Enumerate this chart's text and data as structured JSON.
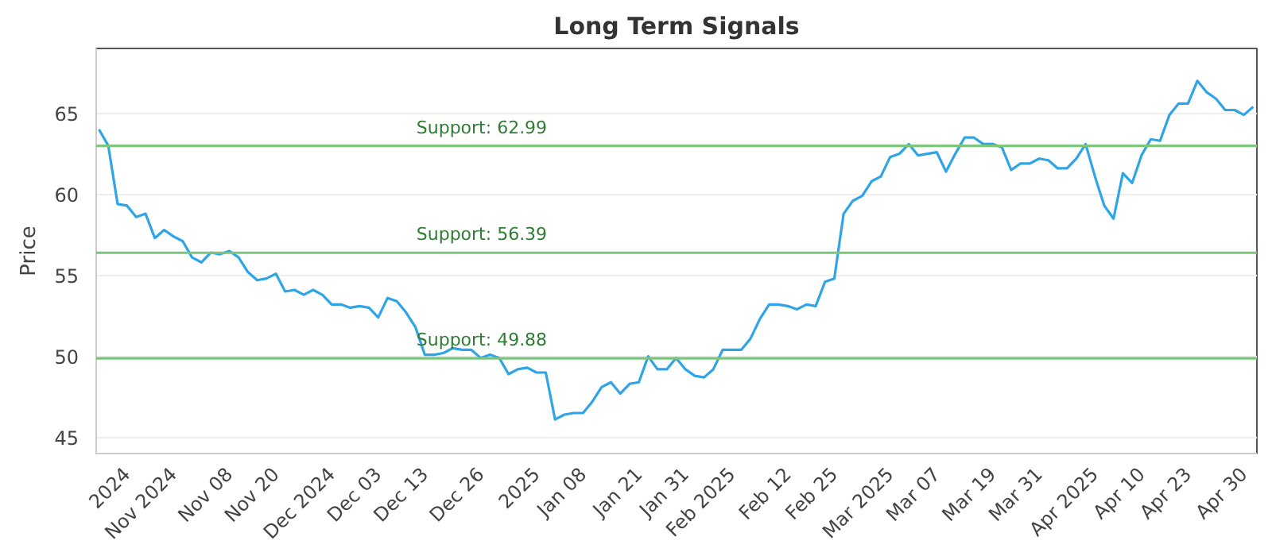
{
  "chart_data": {
    "type": "line",
    "title": "Long Term Signals",
    "ylabel": "Price",
    "categories": [
      null,
      null,
      null,
      "2024",
      null,
      null,
      null,
      null,
      "Nov 2024",
      null,
      null,
      null,
      null,
      null,
      "Nov 08",
      null,
      null,
      null,
      null,
      "Nov 20",
      null,
      null,
      null,
      null,
      null,
      "Dec 2024",
      null,
      null,
      null,
      null,
      "Dec 03",
      null,
      null,
      null,
      null,
      "Dec 13",
      null,
      null,
      null,
      null,
      null,
      "Dec 26",
      null,
      null,
      null,
      null,
      null,
      "2025",
      null,
      null,
      null,
      null,
      "Jan 08",
      null,
      null,
      null,
      null,
      null,
      "Jan 21",
      null,
      null,
      null,
      null,
      "Jan 31",
      null,
      null,
      null,
      null,
      "Feb 2025",
      null,
      null,
      null,
      null,
      null,
      "Feb 12",
      null,
      null,
      null,
      null,
      "Feb 25",
      null,
      null,
      null,
      null,
      null,
      "Mar 2025",
      null,
      null,
      null,
      null,
      "Mar 07",
      null,
      null,
      null,
      null,
      null,
      "Mar 19",
      null,
      null,
      null,
      null,
      "Mar 31",
      null,
      null,
      null,
      null,
      null,
      "Apr 2025",
      null,
      null,
      null,
      null,
      "Apr 10",
      null,
      null,
      null,
      null,
      "Apr 23",
      null,
      null,
      null,
      null,
      null,
      "Apr 30",
      null
    ],
    "series": [
      {
        "color": "#2fa4e7",
        "values": [
          64.0,
          63.0,
          59.4,
          59.3,
          58.6,
          58.8,
          57.3,
          57.8,
          57.4,
          57.1,
          56.1,
          55.8,
          56.4,
          56.3,
          56.5,
          56.1,
          55.2,
          54.7,
          54.8,
          55.1,
          54.0,
          54.1,
          53.8,
          54.1,
          53.8,
          53.2,
          53.2,
          53.0,
          53.1,
          53.0,
          52.4,
          53.6,
          53.4,
          52.7,
          51.8,
          50.1,
          50.1,
          50.2,
          50.5,
          50.4,
          50.4,
          49.9,
          50.1,
          49.9,
          48.9,
          49.2,
          49.3,
          49.0,
          49.0,
          46.1,
          46.4,
          46.5,
          46.5,
          47.2,
          48.1,
          48.4,
          47.7,
          48.3,
          48.4,
          50.0,
          49.2,
          49.2,
          49.9,
          49.2,
          48.8,
          48.7,
          49.2,
          50.4,
          50.4,
          50.4,
          51.1,
          52.3,
          53.2,
          53.2,
          53.1,
          52.9,
          53.2,
          53.1,
          54.6,
          54.8,
          58.8,
          59.6,
          59.9,
          60.8,
          61.1,
          62.3,
          62.5,
          63.1,
          62.4,
          62.5,
          62.6,
          61.4,
          62.5,
          63.5,
          63.5,
          63.1,
          63.1,
          62.9,
          61.5,
          61.9,
          61.9,
          62.2,
          62.1,
          61.6,
          61.6,
          62.2,
          63.1,
          61.1,
          59.3,
          58.5,
          61.3,
          60.7,
          62.4,
          63.4,
          63.3,
          64.9,
          65.6,
          65.6,
          67.0,
          66.3,
          65.9,
          65.2,
          65.2,
          64.9,
          65.4
        ]
      }
    ],
    "ylim": [
      44,
      69
    ],
    "yticks": [
      45,
      50,
      55,
      60,
      65
    ],
    "grid": "y",
    "marker": "none",
    "line_style": "solid",
    "ref_lines": [
      {
        "axis": "y",
        "value": 62.99,
        "label": "Support: 62.99",
        "color": "#7dc47d"
      },
      {
        "axis": "y",
        "value": 56.39,
        "label": "Support: 56.39",
        "color": "#7dc47d"
      },
      {
        "axis": "y",
        "value": 49.88,
        "label": "Support: 49.88",
        "color": "#7dc47d"
      }
    ]
  }
}
